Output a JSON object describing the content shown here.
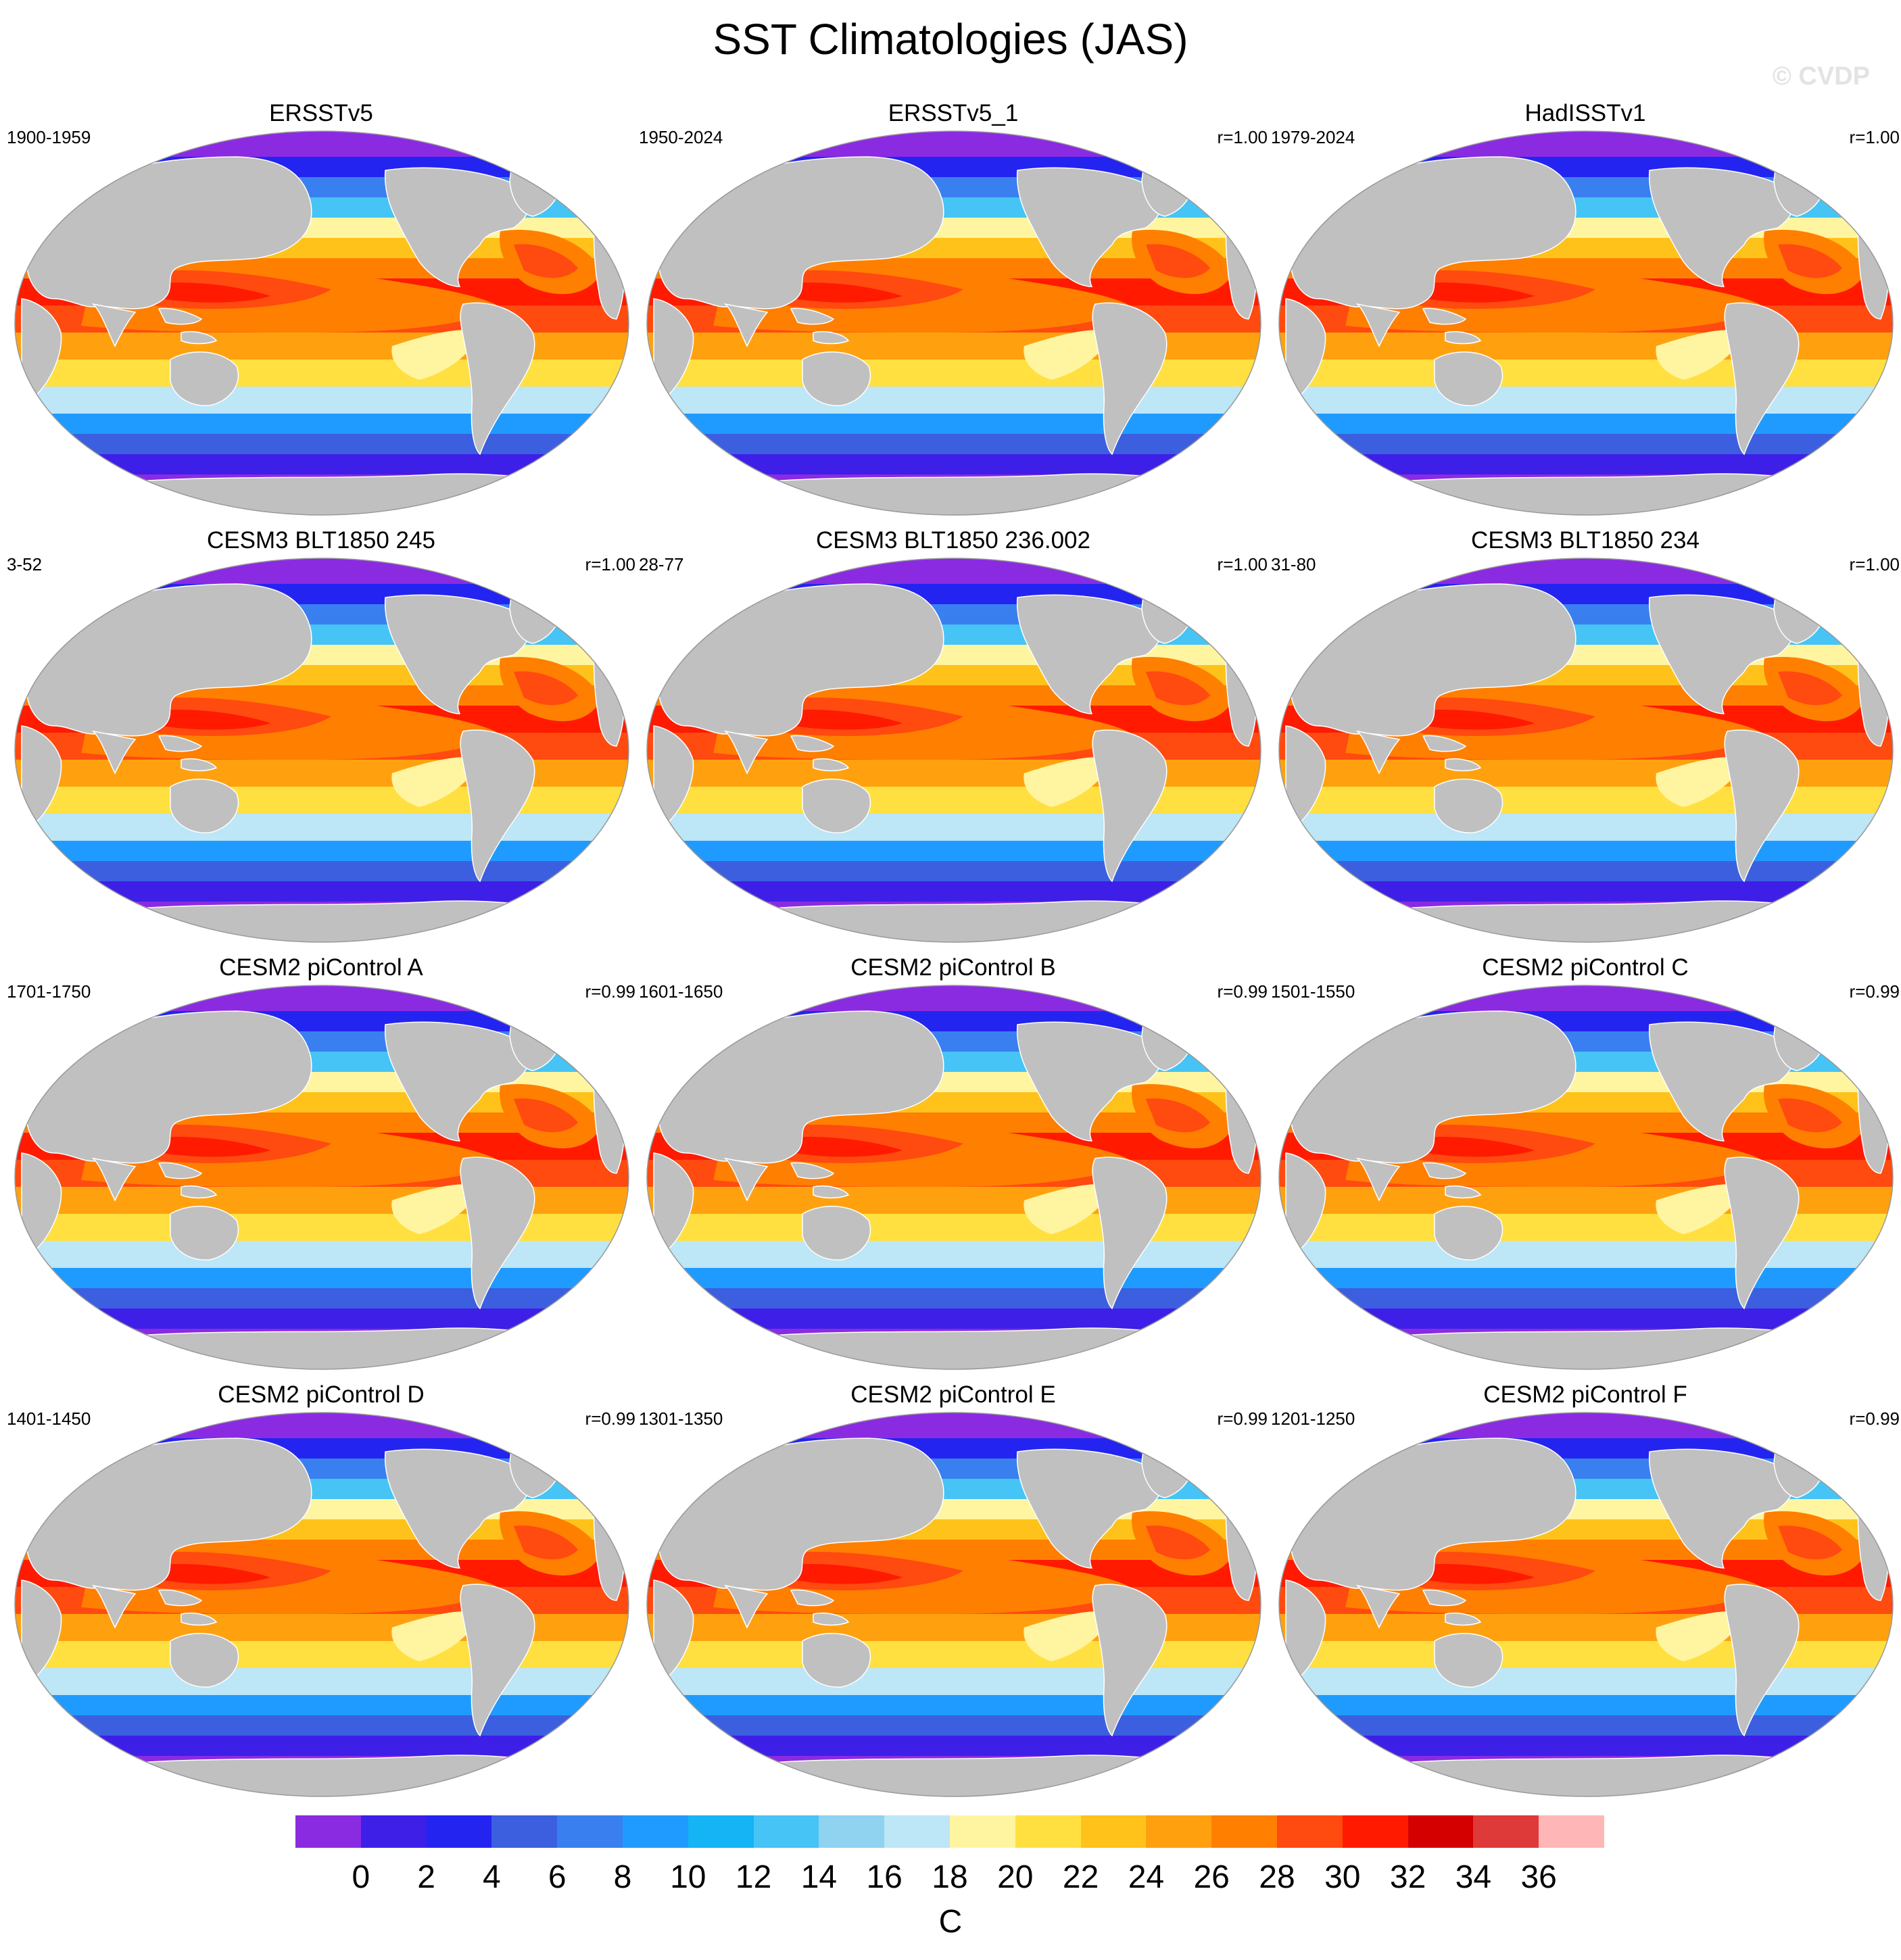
{
  "title": "SST Climatologies (JAS)",
  "watermark": "© CVDP",
  "panels": [
    {
      "title": "ERSSTv5",
      "years": "1900-1959",
      "r": ""
    },
    {
      "title": "ERSSTv5_1",
      "years": "1950-2024",
      "r": "r=1.00"
    },
    {
      "title": "HadISSTv1",
      "years": "1979-2024",
      "r": "r=1.00"
    },
    {
      "title": "CESM3 BLT1850 245",
      "years": "3-52",
      "r": "r=1.00"
    },
    {
      "title": "CESM3 BLT1850 236.002",
      "years": "28-77",
      "r": "r=1.00"
    },
    {
      "title": "CESM3 BLT1850 234",
      "years": "31-80",
      "r": "r=1.00"
    },
    {
      "title": "CESM2 piControl A",
      "years": "1701-1750",
      "r": "r=0.99"
    },
    {
      "title": "CESM2 piControl B",
      "years": "1601-1650",
      "r": "r=0.99"
    },
    {
      "title": "CESM2 piControl C",
      "years": "1501-1550",
      "r": "r=0.99"
    },
    {
      "title": "CESM2 piControl D",
      "years": "1401-1450",
      "r": "r=0.99"
    },
    {
      "title": "CESM2 piControl E",
      "years": "1301-1350",
      "r": "r=0.99"
    },
    {
      "title": "CESM2 piControl F",
      "years": "1201-1250",
      "r": "r=0.99"
    }
  ],
  "colorbar": {
    "units": "C",
    "labels": [
      "0",
      "2",
      "4",
      "6",
      "8",
      "10",
      "12",
      "14",
      "16",
      "18",
      "20",
      "22",
      "24",
      "26",
      "28",
      "30",
      "32",
      "34",
      "36"
    ],
    "colors": [
      "#8a2be2",
      "#3d1fe8",
      "#2424f0",
      "#3c5fe0",
      "#3a7ff0",
      "#1f9bff",
      "#14b4f5",
      "#46c4f5",
      "#8fd3f0",
      "#bde6f7",
      "#fff5a0",
      "#ffe040",
      "#ffc21a",
      "#ffa10f",
      "#ff7f00",
      "#ff4a10",
      "#ff1a00",
      "#d40000",
      "#de3a3a",
      "#ffb6b6"
    ]
  },
  "land_color": "#c0c0c0",
  "ocean_band_colors": [
    "#8a2be2",
    "#3d1fe8",
    "#2424f0",
    "#3c5fe0",
    "#3a7ff0",
    "#1f9bff",
    "#46c4f5",
    "#bde6f7",
    "#fff5a0",
    "#ffe040",
    "#ffc21a",
    "#ffa10f",
    "#ff7f00",
    "#ff4a10",
    "#ff1a00"
  ]
}
